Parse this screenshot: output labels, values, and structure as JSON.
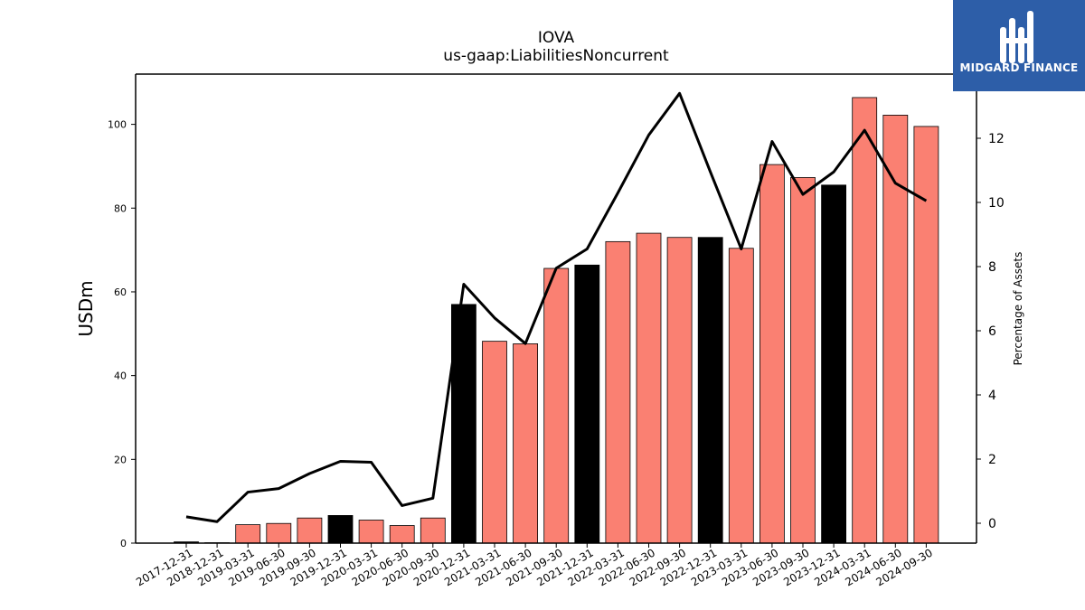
{
  "chart_data": {
    "type": "bar",
    "title": "IOVA",
    "subtitle": "us-gaap:LiabilitiesNoncurrent",
    "xlabel": "",
    "ylabel": "USDm",
    "y2label": "Percentage of Assets",
    "ylim": [
      0,
      112
    ],
    "y2lim": [
      -0.62,
      14.0
    ],
    "yticks": [
      0,
      20,
      40,
      60,
      80,
      100
    ],
    "y2ticks": [
      0,
      2,
      4,
      6,
      8,
      10,
      12
    ],
    "grid": false,
    "colors": {
      "quarter": "#fa8072",
      "year_end": "#000000",
      "line": "#000000"
    },
    "categories": [
      "2017-12-31",
      "2018-12-31",
      "2019-03-31",
      "2019-06-30",
      "2019-09-30",
      "2019-12-31",
      "2020-03-31",
      "2020-06-30",
      "2020-09-30",
      "2020-12-31",
      "2021-03-31",
      "2021-06-30",
      "2021-09-30",
      "2021-12-31",
      "2022-03-31",
      "2022-06-30",
      "2022-09-30",
      "2022-12-31",
      "2023-03-31",
      "2023-06-30",
      "2023-09-30",
      "2023-12-31",
      "2024-03-31",
      "2024-06-30",
      "2024-09-30"
    ],
    "series": [
      {
        "type": "bar",
        "axis": "left",
        "values": [
          0.3,
          0.1,
          4.4,
          4.7,
          6.0,
          6.6,
          5.5,
          4.2,
          6.0,
          57.0,
          48.2,
          47.6,
          65.6,
          66.4,
          72.0,
          74.0,
          73.0,
          73.0,
          70.4,
          90.4,
          87.3,
          85.5,
          106.4,
          102.2,
          99.5
        ],
        "year_end": [
          true,
          true,
          false,
          false,
          false,
          true,
          false,
          false,
          false,
          true,
          false,
          false,
          false,
          true,
          false,
          false,
          false,
          true,
          false,
          false,
          false,
          true,
          false,
          false,
          false
        ]
      },
      {
        "type": "line",
        "axis": "right",
        "values": [
          0.2,
          0.05,
          0.97,
          1.08,
          1.55,
          1.93,
          1.9,
          0.55,
          0.78,
          7.45,
          6.4,
          5.6,
          7.95,
          8.55,
          10.3,
          12.1,
          13.4,
          10.95,
          8.55,
          11.9,
          10.25,
          10.95,
          12.25,
          10.6,
          10.05
        ]
      }
    ]
  },
  "logo": {
    "text": "MIDGARD FINANCE"
  }
}
